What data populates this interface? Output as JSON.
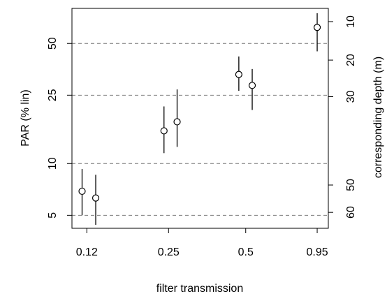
{
  "chart_data": {
    "type": "scatter",
    "title": "",
    "xlabel": "filter transmission",
    "ylabel": "PAR (% lin)",
    "y2label": "corresponding depth (m)",
    "x_scale": "log",
    "y_scale": "log",
    "xlim": [
      0.105,
      1.05
    ],
    "ylim": [
      4.2,
      80
    ],
    "x_tick_labels": [
      "0.12",
      "0.25",
      "0.5",
      "0.95"
    ],
    "x_ticks": [
      0.12,
      0.25,
      0.5,
      0.95
    ],
    "y_tick_labels": [
      "5",
      "10",
      "25",
      "50"
    ],
    "y_ticks": [
      5,
      10,
      25,
      50
    ],
    "y2_tick_labels": [
      "10",
      "20",
      "30",
      "50",
      "60"
    ],
    "y2_ticks_at_par": [
      67,
      40,
      24.5,
      7.5,
      5.2
    ],
    "reference_lines_y": [
      5,
      10,
      25,
      50
    ],
    "grid": false,
    "series": [
      {
        "x": [
          0.115,
          0.13,
          0.24,
          0.27,
          0.47,
          0.53,
          0.95
        ],
        "y": [
          6.9,
          6.3,
          15.5,
          17.5,
          33,
          28.5,
          62
        ],
        "y_low": [
          5.0,
          4.4,
          11.5,
          12.5,
          26.5,
          20.5,
          45
        ],
        "y_high": [
          9.3,
          8.6,
          21.5,
          27.0,
          42,
          35.5,
          75
        ]
      }
    ]
  }
}
